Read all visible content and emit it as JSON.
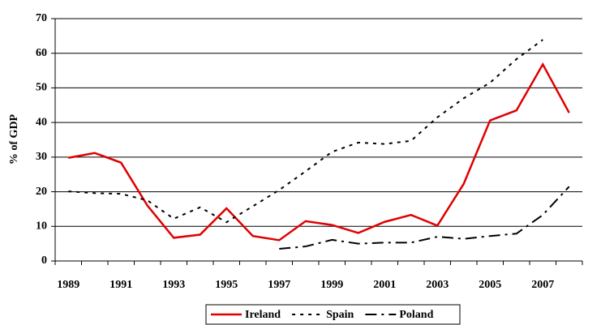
{
  "chart_data": {
    "type": "line",
    "y_label": "% of GDP",
    "categories": [
      "1989",
      null,
      "1991",
      null,
      "1993",
      null,
      "1995",
      null,
      "1997",
      null,
      "1999",
      null,
      "2001",
      null,
      "2003",
      null,
      "2005",
      null,
      "2007",
      null
    ],
    "series": [
      {
        "name": "Ireland",
        "color": "#e00000",
        "dash": "solid",
        "values": [
          29.8,
          31.2,
          28.4,
          16,
          6.7,
          7.6,
          15.2,
          7.2,
          6,
          11.5,
          10.4,
          8.1,
          11.3,
          13.3,
          10.2,
          22.3,
          40.6,
          43.5,
          56.8,
          42.8
        ]
      },
      {
        "name": "Spain",
        "color": "#000000",
        "dash": "dotted",
        "values": [
          20.1,
          19.6,
          19.4,
          17.5,
          12.2,
          15.5,
          11.2,
          15.8,
          20.5,
          25.9,
          31.5,
          34.2,
          33.8,
          34.7,
          41.5,
          47,
          51.5,
          58.3,
          63.9,
          null
        ]
      },
      {
        "name": "Poland",
        "color": "#000000",
        "dash": "dashed",
        "values": [
          null,
          null,
          null,
          null,
          null,
          null,
          null,
          null,
          3.5,
          4.2,
          6.1,
          5.0,
          5.3,
          5.3,
          7.0,
          6.4,
          7.2,
          7.9,
          13.3,
          21.5
        ]
      }
    ],
    "ylim": [
      0,
      70
    ],
    "yticks": [
      0,
      10,
      20,
      30,
      40,
      50,
      60,
      70
    ],
    "grid": true,
    "legend": "bottom"
  }
}
